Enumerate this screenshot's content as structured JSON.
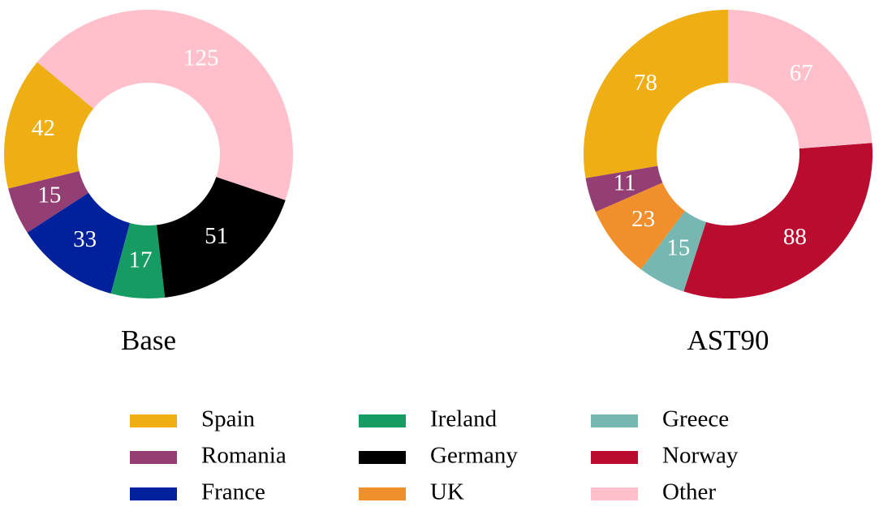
{
  "chart_data": [
    {
      "type": "pie",
      "title": "Base",
      "startangle": 140.4,
      "categories": [
        "Spain",
        "Romania",
        "France",
        "Ireland",
        "Germany",
        "Other"
      ],
      "values": [
        42,
        15,
        33,
        17,
        51,
        125
      ],
      "colors": [
        "#eeae14",
        "#943f74",
        "#00209c",
        "#169b62",
        "#000000",
        "#ffc0cb"
      ]
    },
    {
      "type": "pie",
      "title": "AST90",
      "startangle": 90,
      "categories": [
        "Spain",
        "Romania",
        "UK",
        "Greece",
        "Norway",
        "Other"
      ],
      "values": [
        78,
        11,
        23,
        15,
        88,
        67
      ],
      "colors": [
        "#eeae14",
        "#943f74",
        "#f28f2d",
        "#76b7b2",
        "#ba0c2f",
        "#ffc0cb"
      ]
    }
  ],
  "legend": {
    "entries": [
      {
        "name": "Spain",
        "color": "#eeae14"
      },
      {
        "name": "Romania",
        "color": "#943f74"
      },
      {
        "name": "France",
        "color": "#00209c"
      },
      {
        "name": "Ireland",
        "color": "#169b62"
      },
      {
        "name": "Germany",
        "color": "#000000"
      },
      {
        "name": "UK",
        "color": "#f28f2d"
      },
      {
        "name": "Greece",
        "color": "#76b7b2"
      },
      {
        "name": "Norway",
        "color": "#ba0c2f"
      },
      {
        "name": "Other",
        "color": "#ffc0cb"
      }
    ]
  }
}
